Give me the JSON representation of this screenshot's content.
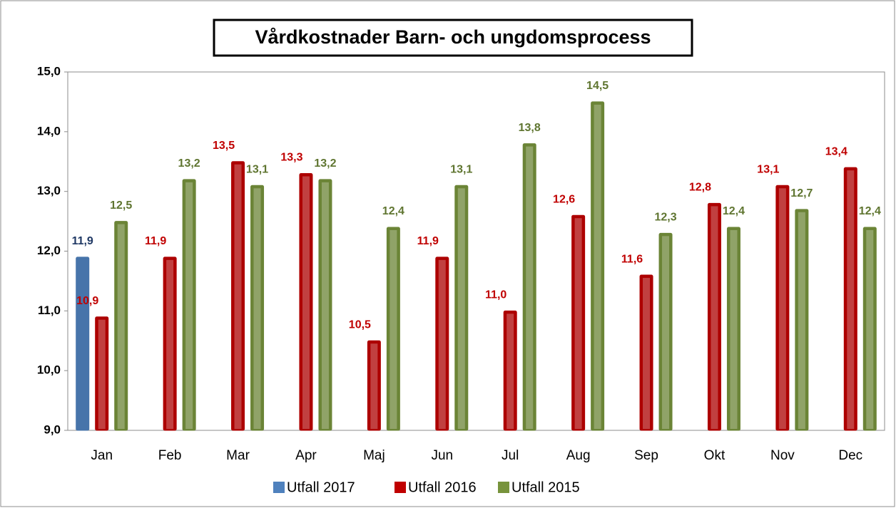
{
  "chart_data": {
    "type": "bar",
    "title": "Vårdkostnader Barn- och ungdomsprocess",
    "categories": [
      "Jan",
      "Feb",
      "Mar",
      "Apr",
      "Maj",
      "Jun",
      "Jul",
      "Aug",
      "Sep",
      "Okt",
      "Nov",
      "Dec"
    ],
    "series": [
      {
        "name": "Utfall 2017",
        "color": "#4f81bd",
        "label_color": "#1f3864",
        "values": [
          11.9,
          null,
          null,
          null,
          null,
          null,
          null,
          null,
          null,
          null,
          null,
          null
        ],
        "value_labels": [
          "11,9",
          null,
          null,
          null,
          null,
          null,
          null,
          null,
          null,
          null,
          null,
          null
        ]
      },
      {
        "name": "Utfall 2016",
        "color": "#c00000",
        "label_color": "#c00000",
        "values": [
          10.9,
          11.9,
          13.5,
          13.3,
          10.5,
          11.9,
          11.0,
          12.6,
          11.6,
          12.8,
          13.1,
          13.4
        ],
        "value_labels": [
          "10,9",
          "11,9",
          "13,5",
          "13,3",
          "10,5",
          "11,9",
          "11,0",
          "12,6",
          "11,6",
          "12,8",
          "13,1",
          "13,4"
        ]
      },
      {
        "name": "Utfall 2015",
        "color": "#77933c",
        "label_color": "#5f7530",
        "values": [
          12.5,
          13.2,
          13.1,
          13.2,
          12.4,
          13.1,
          13.8,
          14.5,
          12.3,
          12.4,
          12.7,
          12.4
        ],
        "value_labels": [
          "12,5",
          "13,2",
          "13,1",
          "13,2",
          "12,4",
          "13,1",
          "13,8",
          "14,5",
          "12,3",
          "12,4",
          "12,7",
          "12,4"
        ]
      }
    ],
    "ylim": [
      9,
      15
    ],
    "yticks": [
      {
        "value": 9,
        "label": "9,0"
      },
      {
        "value": 10,
        "label": "10,0"
      },
      {
        "value": 11,
        "label": "11,0"
      },
      {
        "value": 12,
        "label": "12,0"
      },
      {
        "value": 13,
        "label": "13,0"
      },
      {
        "value": 14,
        "label": "14,0"
      },
      {
        "value": 15,
        "label": "15,0"
      }
    ],
    "legend": "bottom"
  }
}
